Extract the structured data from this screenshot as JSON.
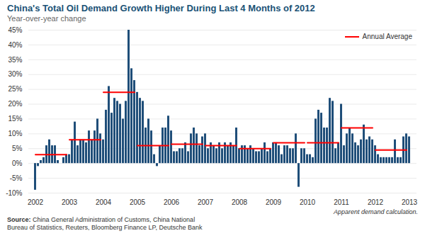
{
  "chart_data": {
    "type": "bar",
    "title": "China's Total Oil Demand Growth Higher During Last 4 Months of 2012",
    "subtitle": "Year-over-year change",
    "annotations": [
      "Apparent demand calculation."
    ],
    "source": [
      "Source: China General Administration of Customs, China National",
      "Bureau of Statistics, Reuters, Bloomberg Finance LP, Deutsche Bank"
    ],
    "categories": [
      "2002",
      null,
      null,
      null,
      null,
      null,
      null,
      null,
      null,
      null,
      null,
      null,
      "2003",
      null,
      null,
      null,
      null,
      null,
      null,
      null,
      null,
      null,
      null,
      null,
      "2004",
      null,
      null,
      null,
      null,
      null,
      null,
      null,
      null,
      null,
      null,
      null,
      "2005",
      null,
      null,
      null,
      null,
      null,
      null,
      null,
      null,
      null,
      null,
      null,
      "2006",
      null,
      null,
      null,
      null,
      null,
      null,
      null,
      null,
      null,
      null,
      null,
      "2007",
      null,
      null,
      null,
      null,
      null,
      null,
      null,
      null,
      null,
      null,
      null,
      "2008",
      null,
      null,
      null,
      null,
      null,
      null,
      null,
      null,
      null,
      null,
      null,
      "2009",
      null,
      null,
      null,
      null,
      null,
      null,
      null,
      null,
      null,
      null,
      null,
      "2010",
      null,
      null,
      null,
      null,
      null,
      null,
      null,
      null,
      null,
      null,
      null,
      "2011",
      null,
      null,
      null,
      null,
      null,
      null,
      null,
      null,
      null,
      null,
      null,
      "2012",
      null,
      null,
      null,
      null,
      null,
      null,
      null,
      null,
      null,
      null,
      null,
      "2013"
    ],
    "series": [
      {
        "type": "bar",
        "color": "#1F4E79",
        "values": [
          -9,
          -1,
          1,
          2,
          6,
          8,
          6,
          6,
          1,
          0,
          2,
          3,
          3,
          8,
          14,
          6,
          8,
          8,
          7,
          11,
          8,
          11,
          15,
          10,
          8,
          18,
          26,
          17,
          22,
          21,
          20,
          15,
          21,
          45,
          32,
          28,
          24,
          22,
          21,
          12,
          15,
          11,
          3,
          -1,
          6,
          12,
          12,
          16,
          11,
          4,
          4,
          5,
          5,
          7,
          4,
          10,
          12,
          10,
          6,
          9,
          10,
          5,
          7,
          6,
          5,
          7,
          5,
          7,
          6,
          7,
          6,
          12,
          5,
          6,
          6,
          5,
          6,
          5,
          4,
          4,
          5,
          7,
          4,
          5,
          7,
          7,
          6,
          3,
          6,
          6,
          5,
          5,
          10,
          -8,
          5,
          5,
          3,
          3,
          2,
          15,
          18,
          17,
          12,
          12,
          22,
          21,
          5,
          7,
          20,
          6,
          10,
          12,
          10,
          7,
          6,
          8,
          13,
          8,
          9,
          8,
          6,
          3,
          2,
          2,
          2,
          2,
          2,
          8,
          2,
          2,
          9,
          10,
          9
        ]
      },
      {
        "name": "Annual Average",
        "type": "line",
        "color": "#FF0000",
        "values": [
          3,
          3,
          3,
          3,
          3,
          3,
          3,
          3,
          3,
          3,
          3,
          3,
          8,
          8,
          8,
          8,
          8,
          8,
          8,
          8,
          8,
          8,
          8,
          8,
          24,
          24,
          24,
          24,
          24,
          24,
          24,
          24,
          24,
          24,
          24,
          24,
          6,
          6,
          6,
          6,
          6,
          6,
          6,
          6,
          6,
          6,
          6,
          6,
          6.5,
          6.5,
          6.5,
          6.5,
          6.5,
          6.5,
          6.5,
          6.5,
          6.5,
          6.5,
          6.5,
          6.5,
          6,
          6,
          6,
          6,
          6,
          6,
          6,
          6,
          6,
          6,
          6,
          6,
          5,
          5,
          5,
          5,
          5,
          5,
          5,
          5,
          5,
          5,
          5,
          5,
          7,
          7,
          7,
          7,
          7,
          7,
          7,
          7,
          7,
          7,
          7,
          7,
          7,
          7,
          7,
          7,
          7,
          7,
          7,
          7,
          7,
          7,
          7,
          7,
          12,
          12,
          12,
          12,
          12,
          12,
          12,
          12,
          12,
          12,
          12,
          12,
          4.5,
          4.5,
          4.5,
          4.5,
          4.5,
          4.5,
          4.5,
          4.5,
          4.5,
          4.5,
          4.5,
          4.5,
          null
        ]
      }
    ],
    "ylim": [
      -10,
      45
    ],
    "yticks": [
      {
        "value": -10,
        "label": "-10%"
      },
      {
        "value": -5,
        "label": "-5%"
      },
      {
        "value": 0,
        "label": "0%"
      },
      {
        "value": 5,
        "label": "5%"
      },
      {
        "value": 10,
        "label": "10%"
      },
      {
        "value": 15,
        "label": "15%"
      },
      {
        "value": 20,
        "label": "20%"
      },
      {
        "value": 25,
        "label": "25%"
      },
      {
        "value": 30,
        "label": "30%"
      },
      {
        "value": 35,
        "label": "35%"
      },
      {
        "value": 40,
        "label": "40%"
      },
      {
        "value": 45,
        "label": "45%"
      }
    ],
    "grid": true,
    "legend": "upper right"
  }
}
